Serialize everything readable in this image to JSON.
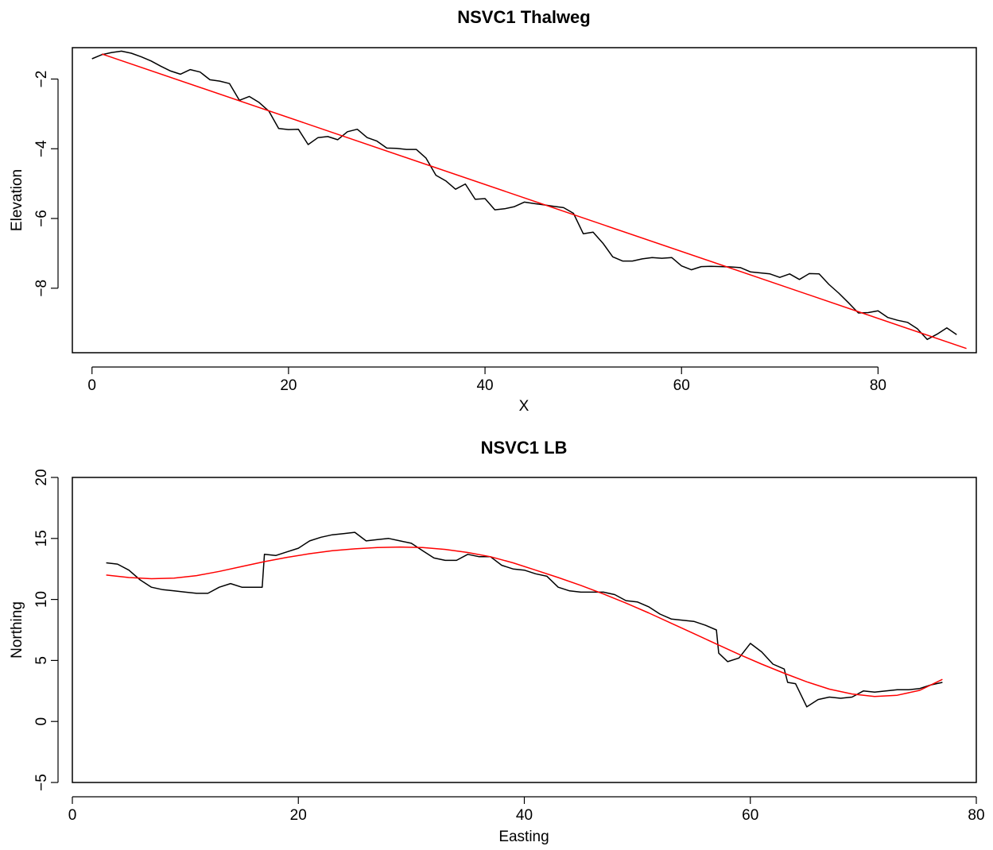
{
  "colors": {
    "observed": "#000000",
    "fit": "#ff0000"
  },
  "chart_data": [
    {
      "type": "line",
      "title": "NSVC1 Thalweg",
      "xlabel": "X",
      "ylabel": "Elevation",
      "xlim": [
        -2,
        90
      ],
      "ylim": [
        -9.85,
        -1.1
      ],
      "xticks": [
        0,
        20,
        40,
        60,
        80
      ],
      "yticks": [
        -2,
        -4,
        -6,
        -8
      ],
      "grid": false,
      "series": [
        {
          "color": "#000000",
          "x": [
            0,
            1,
            2,
            3,
            4,
            5,
            6,
            7,
            8,
            9,
            10,
            11,
            12,
            13,
            14,
            15,
            16,
            17,
            18,
            19,
            20,
            21,
            22,
            23,
            24,
            25,
            26,
            27,
            28,
            29,
            30,
            31,
            32,
            33,
            34,
            35,
            36,
            37,
            38,
            39,
            40,
            41,
            42,
            43,
            44,
            45,
            46,
            47,
            48,
            49,
            50,
            51,
            52,
            53,
            54,
            55,
            56,
            57,
            58,
            59,
            60,
            61,
            62,
            63,
            64,
            65,
            66,
            67,
            68,
            69,
            70,
            71,
            72,
            73,
            74,
            75,
            76,
            77,
            78,
            79,
            80,
            81,
            82,
            83,
            84,
            85,
            86,
            87,
            88
          ],
          "y": [
            -1.42,
            -1.3,
            -1.24,
            -1.2,
            -1.26,
            -1.36,
            -1.48,
            -1.63,
            -1.77,
            -1.86,
            -1.73,
            -1.8,
            -2.02,
            -2.06,
            -2.13,
            -2.61,
            -2.5,
            -2.67,
            -2.92,
            -3.42,
            -3.45,
            -3.44,
            -3.88,
            -3.68,
            -3.65,
            -3.74,
            -3.51,
            -3.44,
            -3.68,
            -3.78,
            -3.98,
            -3.99,
            -4.02,
            -4.02,
            -4.27,
            -4.76,
            -4.92,
            -5.16,
            -5.01,
            -5.45,
            -5.43,
            -5.75,
            -5.72,
            -5.66,
            -5.53,
            -5.57,
            -5.61,
            -5.65,
            -5.69,
            -5.85,
            -6.44,
            -6.39,
            -6.71,
            -7.1,
            -7.22,
            -7.22,
            -7.16,
            -7.12,
            -7.14,
            -7.12,
            -7.36,
            -7.47,
            -7.38,
            -7.37,
            -7.38,
            -7.39,
            -7.41,
            -7.53,
            -7.56,
            -7.59,
            -7.69,
            -7.59,
            -7.75,
            -7.58,
            -7.59,
            -7.89,
            -8.14,
            -8.42,
            -8.71,
            -8.7,
            -8.65,
            -8.84,
            -8.92,
            -8.98,
            -9.16,
            -9.47,
            -9.32,
            -9.14,
            -9.33
          ]
        },
        {
          "color": "#ff0000",
          "x": [
            1,
            89
          ],
          "y": [
            -1.28,
            -9.73
          ]
        }
      ]
    },
    {
      "type": "line",
      "title": "NSVC1 LB",
      "xlabel": "Easting",
      "ylabel": "Northing",
      "xlim": [
        0,
        80
      ],
      "ylim": [
        -5,
        20
      ],
      "xticks": [
        0,
        20,
        40,
        60,
        80
      ],
      "yticks": [
        -5,
        0,
        5,
        10,
        15,
        20
      ],
      "grid": false,
      "series": [
        {
          "color": "#000000",
          "x": [
            3,
            4,
            5,
            6,
            7,
            8,
            9,
            10,
            11,
            12,
            13,
            14,
            15,
            16,
            16.8,
            17,
            18,
            19,
            20,
            21,
            22,
            23,
            24,
            25,
            26,
            27,
            28,
            29,
            30,
            31,
            32,
            33,
            34,
            35,
            36,
            37,
            38,
            39,
            40,
            41,
            42,
            43,
            44,
            45,
            46,
            47,
            48,
            49,
            50,
            51,
            52,
            53,
            54,
            55,
            56,
            57,
            57.2,
            58,
            59,
            60,
            61,
            62,
            63,
            63.3,
            64,
            65,
            66,
            67,
            68,
            69,
            70,
            71,
            72,
            73,
            74,
            75,
            76,
            77
          ],
          "y": [
            13,
            12.9,
            12.4,
            11.6,
            11,
            10.8,
            10.7,
            10.6,
            10.5,
            10.5,
            11,
            11.3,
            11,
            11,
            11,
            13.7,
            13.6,
            13.9,
            14.2,
            14.8,
            15.1,
            15.3,
            15.4,
            15.5,
            14.8,
            14.9,
            15,
            14.8,
            14.6,
            14,
            13.4,
            13.2,
            13.2,
            13.7,
            13.5,
            13.5,
            12.8,
            12.5,
            12.4,
            12.1,
            11.9,
            11,
            10.7,
            10.6,
            10.6,
            10.6,
            10.4,
            9.9,
            9.8,
            9.4,
            8.8,
            8.4,
            8.3,
            8.2,
            7.9,
            7.5,
            5.6,
            4.9,
            5.2,
            6.4,
            5.7,
            4.7,
            4.3,
            3.2,
            3.1,
            1.2,
            1.8,
            2,
            1.9,
            2,
            2.5,
            2.4,
            2.5,
            2.6,
            2.6,
            2.7,
            3,
            3.2
          ]
        },
        {
          "color": "#ff0000",
          "x": [
            3,
            5,
            7,
            9,
            11,
            13,
            15,
            17,
            19,
            21,
            23,
            25,
            27,
            29,
            31,
            33,
            35,
            37,
            39,
            41,
            43,
            45,
            47,
            49,
            51,
            53,
            55,
            57,
            59,
            61,
            63,
            65,
            67,
            69,
            71,
            73,
            75,
            77
          ],
          "y": [
            12,
            11.8,
            11.7,
            11.75,
            11.95,
            12.3,
            12.7,
            13.1,
            13.45,
            13.75,
            14,
            14.15,
            14.25,
            14.3,
            14.25,
            14.1,
            13.85,
            13.5,
            13,
            12.4,
            11.8,
            11.15,
            10.45,
            9.7,
            8.9,
            8.05,
            7.2,
            6.35,
            5.5,
            4.7,
            3.95,
            3.25,
            2.65,
            2.25,
            2.05,
            2.15,
            2.55,
            3.45
          ]
        }
      ]
    }
  ]
}
